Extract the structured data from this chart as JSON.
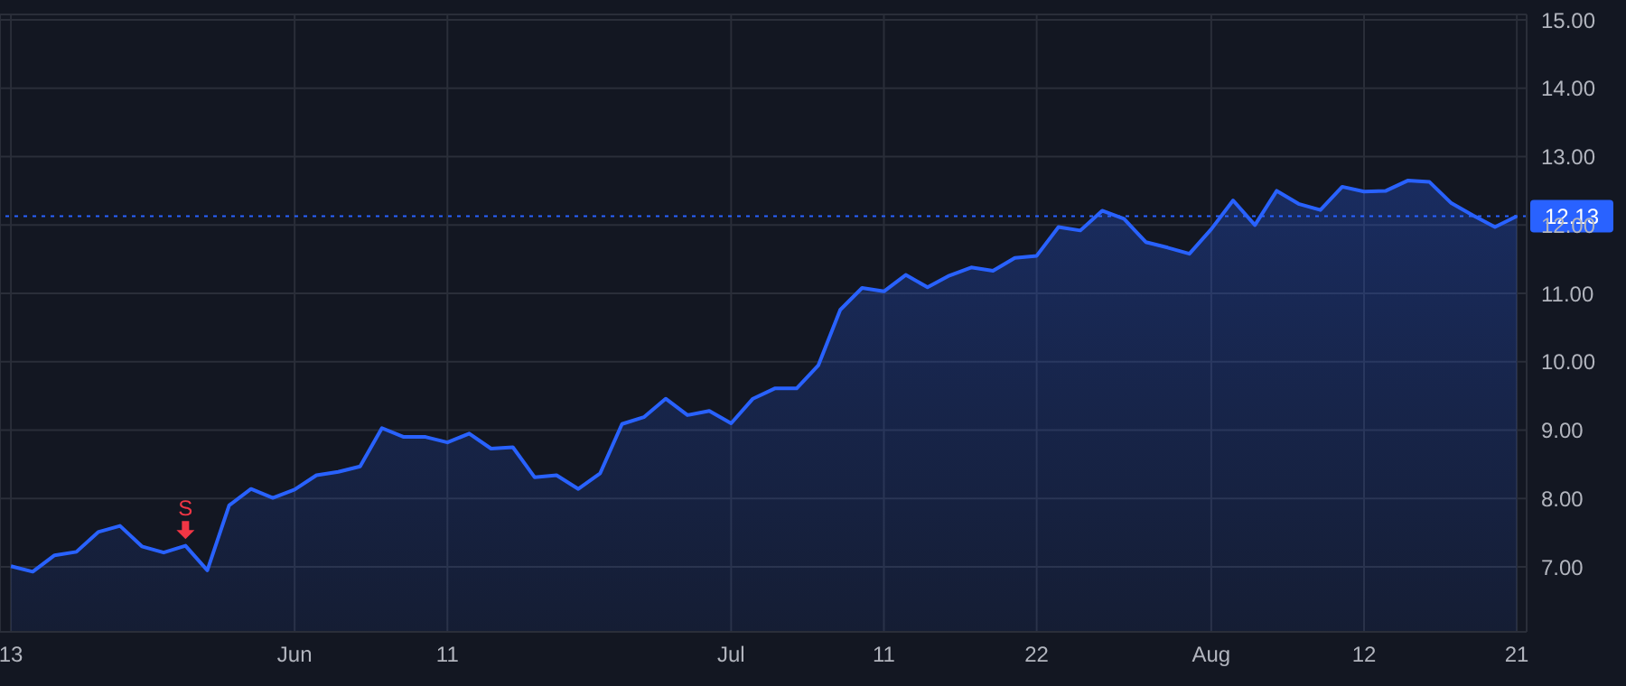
{
  "chart_data": {
    "type": "area",
    "categories": [
      "13",
      null,
      null,
      null,
      null,
      null,
      null,
      null,
      null,
      null,
      null,
      null,
      null,
      "Jun",
      null,
      null,
      null,
      null,
      null,
      null,
      "11",
      null,
      null,
      null,
      null,
      null,
      null,
      null,
      null,
      null,
      null,
      null,
      null,
      "Jul",
      null,
      null,
      null,
      null,
      null,
      null,
      "11",
      null,
      null,
      null,
      null,
      null,
      null,
      "22",
      null,
      null,
      null,
      null,
      null,
      null,
      null,
      "Aug",
      null,
      null,
      null,
      null,
      null,
      null,
      "12",
      null,
      null,
      null,
      null,
      null,
      null,
      "21"
    ],
    "series": [
      {
        "color": "#2962ff",
        "values": [
          7.01,
          6.93,
          7.17,
          7.22,
          7.51,
          7.6,
          7.3,
          7.21,
          7.31,
          6.95,
          7.9,
          8.14,
          8.01,
          8.13,
          8.34,
          8.39,
          8.47,
          9.03,
          8.9,
          8.9,
          8.82,
          8.95,
          8.73,
          8.75,
          8.31,
          8.34,
          8.14,
          8.37,
          9.09,
          9.19,
          9.46,
          9.22,
          9.28,
          9.1,
          9.46,
          9.61,
          9.61,
          9.95,
          10.76,
          11.08,
          11.03,
          11.27,
          11.09,
          11.26,
          11.38,
          11.33,
          11.52,
          11.55,
          11.97,
          11.92,
          12.21,
          12.09,
          11.75,
          11.67,
          11.58,
          11.94,
          12.36,
          12.0,
          12.5,
          12.31,
          12.22,
          12.56,
          12.49,
          12.5,
          12.65,
          12.63,
          12.32,
          12.14,
          11.97,
          12.13
        ]
      },
      {
        "type": "scatter",
        "name": "S",
        "color": "#f23645",
        "values": [
          null,
          null,
          null,
          null,
          null,
          null,
          null,
          null,
          7.54,
          null,
          null,
          null,
          null,
          null,
          null,
          null,
          null,
          null,
          null,
          null,
          null,
          null,
          null,
          null,
          null,
          null,
          null,
          null,
          null,
          null,
          null,
          null,
          null,
          null,
          null,
          null,
          null,
          null,
          null,
          null,
          null,
          null,
          null,
          null,
          null,
          null,
          null,
          null,
          null,
          null,
          null,
          null,
          null,
          null,
          null,
          null,
          null,
          null,
          null,
          null,
          null,
          null,
          null,
          null,
          null,
          null,
          null,
          null,
          null,
          null
        ]
      }
    ],
    "ylim": [
      6.05,
      15.08
    ],
    "yticks": [
      {
        "value": 7,
        "label": "7.00"
      },
      {
        "value": 8,
        "label": "8.00"
      },
      {
        "value": 9,
        "label": "9.00"
      },
      {
        "value": 10,
        "label": "10.00"
      },
      {
        "value": 11,
        "label": "11.00"
      },
      {
        "value": 12,
        "label": "12.00"
      },
      {
        "value": 13,
        "label": "13.00"
      },
      {
        "value": 14,
        "label": "14.00"
      },
      {
        "value": 15,
        "label": "15.00"
      }
    ],
    "ref_lines": [
      {
        "axis": "y",
        "value": 12.13,
        "label": "12.13",
        "color": "#2962ff",
        "line_style": "dotted"
      }
    ],
    "grid": true
  }
}
